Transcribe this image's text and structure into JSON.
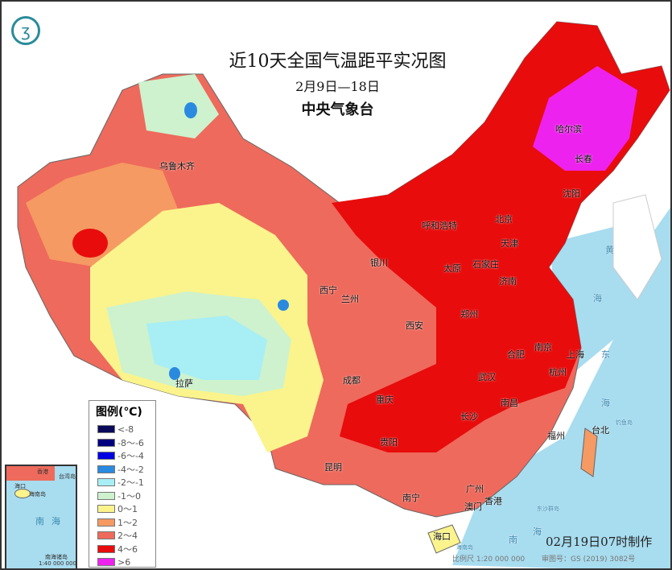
{
  "title": "近10天全国气温距平实况图",
  "date_range": "2月9日—18日",
  "issuer": "中央气象台",
  "logo_icon": "cma-logo",
  "legend": {
    "title": "图例(℃)",
    "items": [
      {
        "label": "<-8",
        "color": "#0a0a5a"
      },
      {
        "label": "-8～-6",
        "color": "#00007f"
      },
      {
        "label": "-6～-4",
        "color": "#0000e0"
      },
      {
        "label": "-4～-2",
        "color": "#2a8ae0"
      },
      {
        "label": "-2～-1",
        "color": "#a8eef5"
      },
      {
        "label": "-1～0",
        "color": "#cdf2cd"
      },
      {
        "label": "0～1",
        "color": "#fbf48c"
      },
      {
        "label": "1～2",
        "color": "#f59a62"
      },
      {
        "label": "2～4",
        "color": "#ee6a5c"
      },
      {
        "label": "4～6",
        "color": "#e80c0c"
      },
      {
        "label": ">6",
        "color": "#ee22ee"
      }
    ]
  },
  "cities": [
    "乌鲁木齐",
    "哈尔滨",
    "长春",
    "沈阳",
    "北京",
    "天津",
    "呼和浩特",
    "石家庄",
    "太原",
    "银川",
    "济南",
    "西宁",
    "兰州",
    "郑州",
    "西安",
    "合肥",
    "南京",
    "上海",
    "杭州",
    "成都",
    "武汉",
    "重庆",
    "南昌",
    "长沙",
    "拉萨",
    "台北",
    "福州",
    "贵阳",
    "昆明",
    "广州",
    "南宁",
    "香港",
    "澳门",
    "海口"
  ],
  "sea_labels": [
    "黄",
    "海",
    "东",
    "海",
    "南",
    "海",
    "钓鱼岛",
    "东沙群岛",
    "海南岛"
  ],
  "inset": {
    "labels": [
      "香港",
      "台湾岛",
      "海口",
      "海南岛",
      "南",
      "海",
      "南海诸岛"
    ],
    "scale": "1:40 000 000"
  },
  "stamp": "02月19日07时制作",
  "scale": "比例尺 1:20 000 000",
  "map_number": "审图号：GS (2019) 3082号"
}
